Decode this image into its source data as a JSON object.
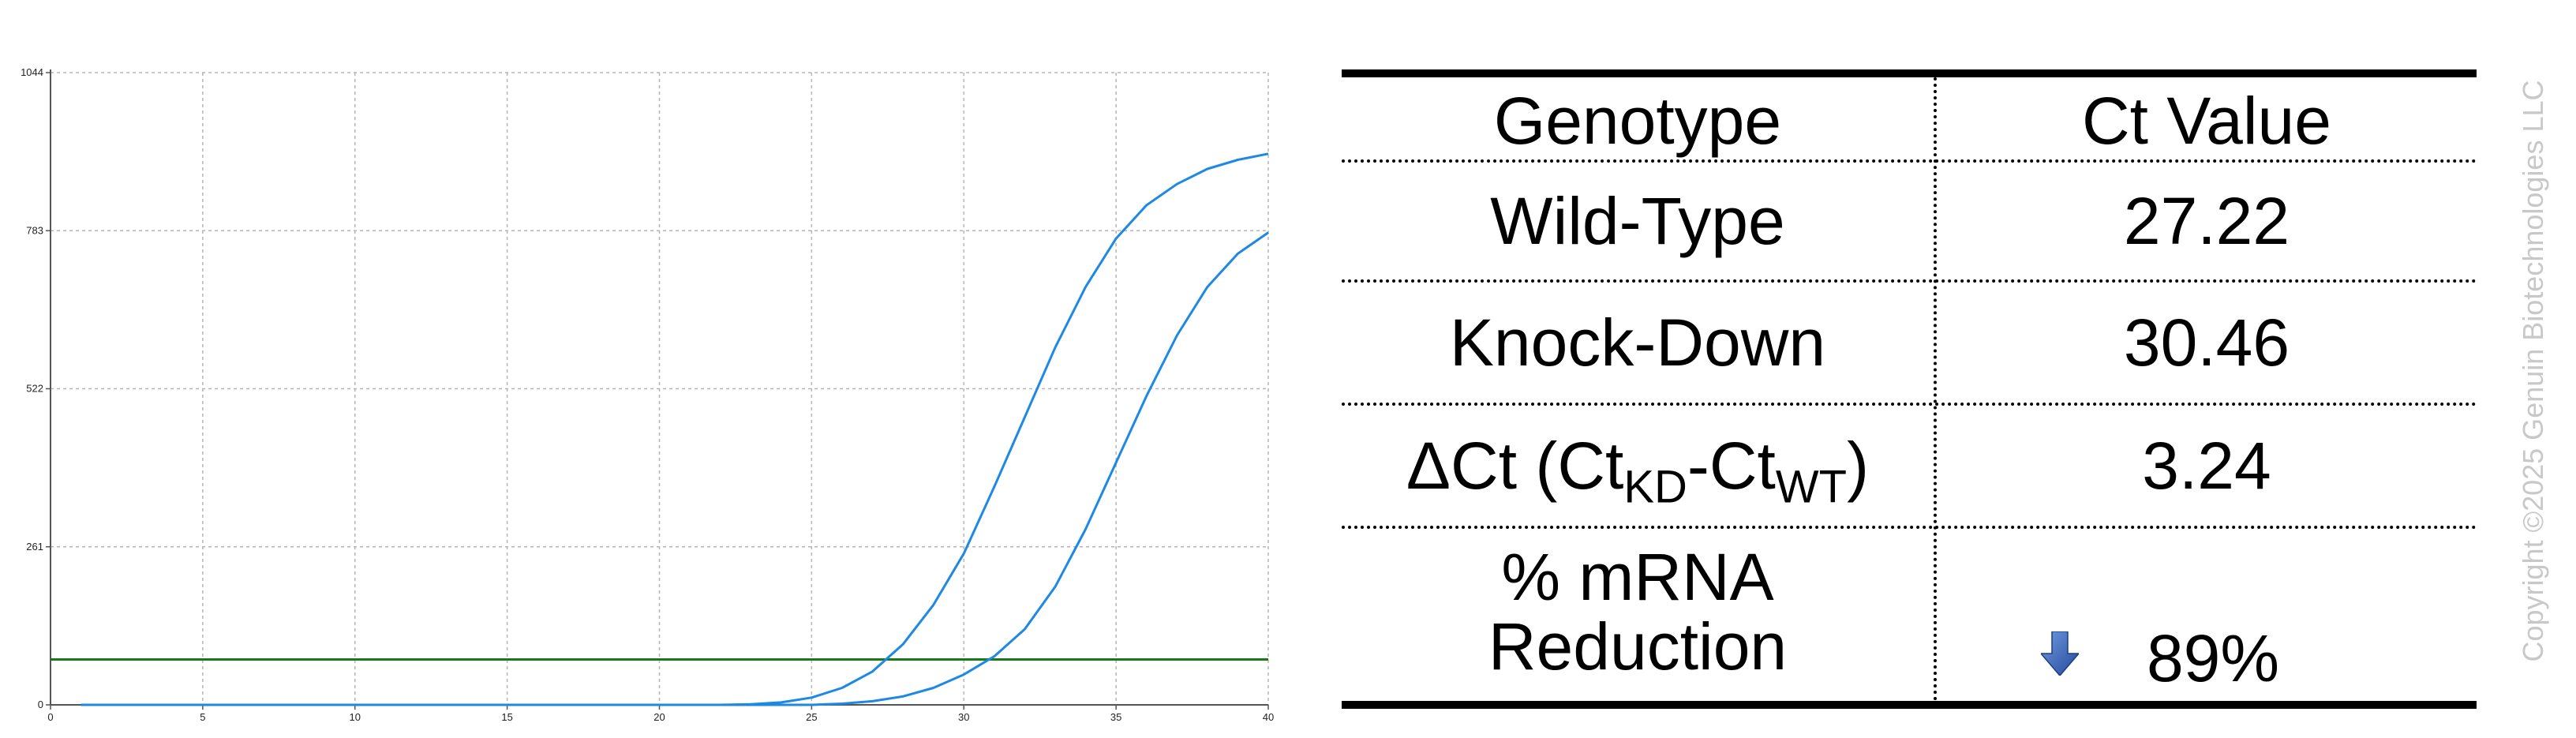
{
  "chart_data": {
    "type": "line",
    "x_ticks": [
      0,
      5,
      10,
      15,
      20,
      25,
      30,
      35,
      40
    ],
    "y_ticks": [
      0,
      261,
      522,
      783,
      1044
    ],
    "xlim": [
      0,
      40
    ],
    "ylim": [
      0,
      1044
    ],
    "grid": true,
    "threshold": 75,
    "series": [
      {
        "x": [
          1,
          3,
          5,
          7,
          9,
          11,
          13,
          15,
          17,
          19,
          21,
          22,
          23,
          24,
          25,
          26,
          27,
          28,
          29,
          30,
          31,
          32,
          33,
          34,
          35,
          36,
          37,
          38,
          39,
          40
        ],
        "values": [
          0,
          0,
          0,
          0,
          0,
          0,
          0,
          0,
          0,
          0,
          0,
          0,
          1,
          4,
          12,
          28,
          55,
          100,
          165,
          250,
          360,
          475,
          590,
          690,
          770,
          825,
          860,
          885,
          900,
          910
        ]
      },
      {
        "x": [
          1,
          3,
          5,
          7,
          9,
          11,
          13,
          15,
          17,
          19,
          21,
          23,
          25,
          26,
          27,
          28,
          29,
          30,
          31,
          32,
          33,
          34,
          35,
          36,
          37,
          38,
          39,
          40
        ],
        "values": [
          0,
          0,
          0,
          0,
          0,
          0,
          0,
          0,
          0,
          0,
          0,
          0,
          0,
          2,
          6,
          14,
          28,
          50,
          80,
          125,
          195,
          290,
          400,
          510,
          610,
          690,
          745,
          780
        ]
      }
    ],
    "colors": {
      "series": "#1e88e5",
      "threshold": "#1a7a1a",
      "grid": "#b5b5b5",
      "axis": "#555555"
    }
  },
  "table": {
    "headers": [
      "Genotype",
      "Ct Value"
    ],
    "rows": [
      {
        "label": "Wild-Type",
        "value": "27.22"
      },
      {
        "label": "Knock-Down",
        "value": "30.46"
      }
    ],
    "delta_row": {
      "label_main": "ΔCt (Ct",
      "label_sub1": "KD",
      "label_mid": "-Ct",
      "label_sub2": "WT",
      "label_end": ")",
      "value": "3.24"
    },
    "reduction_row": {
      "label_line1": "% mRNA",
      "label_line2": "Reduction",
      "value": "89%",
      "icon": "arrow-down-icon",
      "icon_color": "#2f5ea8"
    }
  },
  "copyright": "Copyright ©2025 Genuin Biotechnologies LLC"
}
